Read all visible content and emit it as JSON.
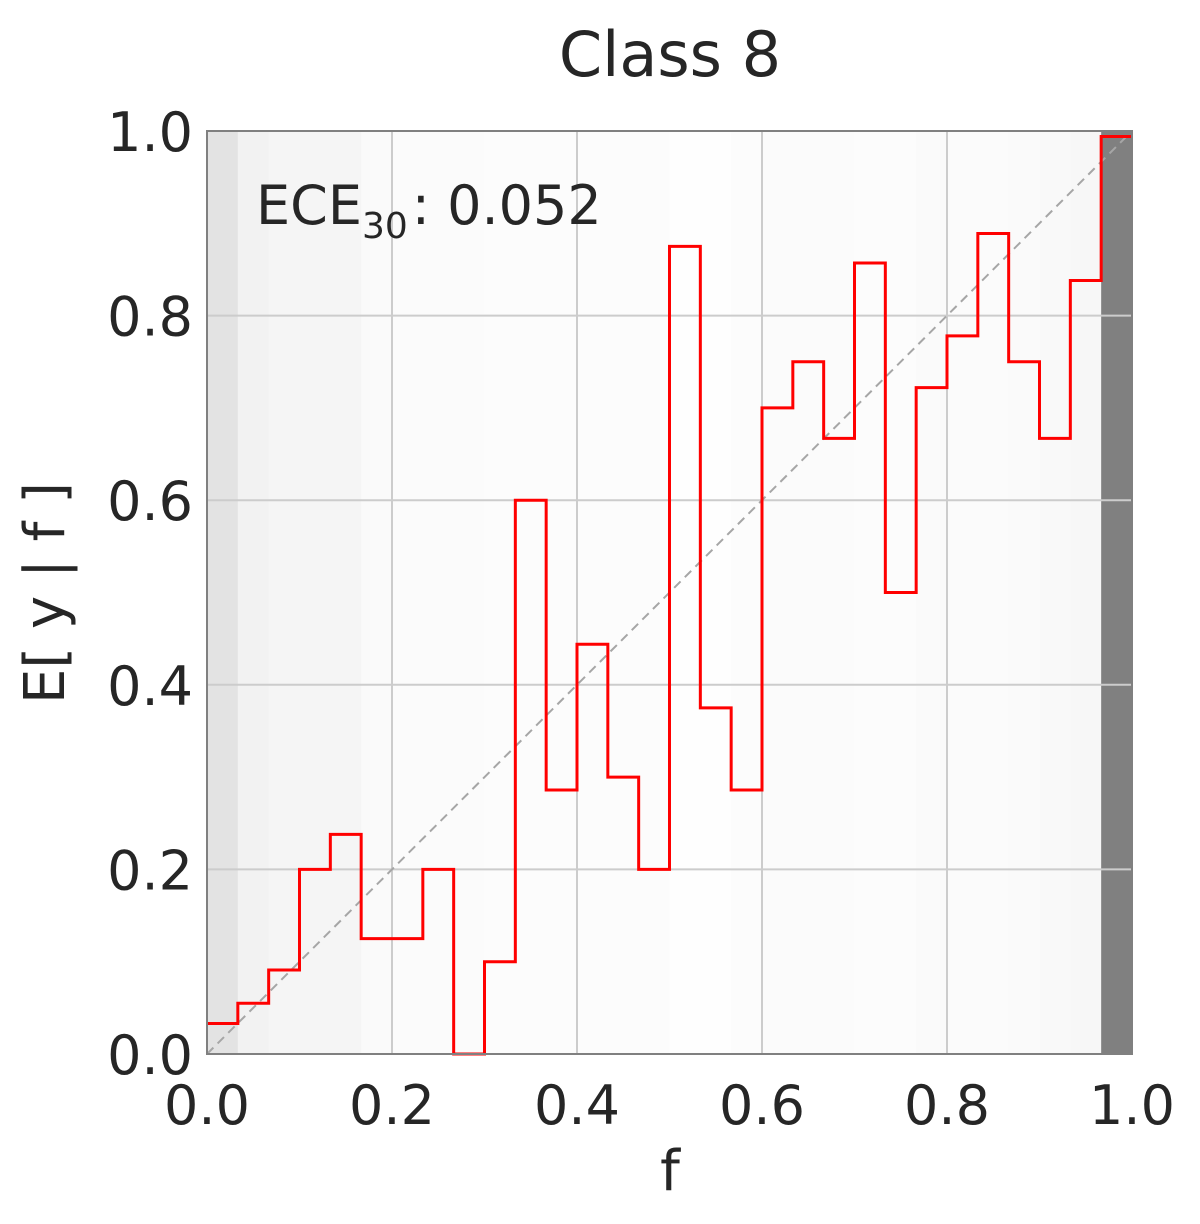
{
  "chart_data": {
    "type": "line",
    "title": "Class 8",
    "xlabel": "f",
    "ylabel": "E[ y | f ]",
    "xlim": [
      0.0,
      1.0
    ],
    "ylim": [
      0.0,
      1.0
    ],
    "xticks": [
      "0.0",
      "0.2",
      "0.4",
      "0.6",
      "0.8",
      "1.0"
    ],
    "yticks": [
      "0.0",
      "0.2",
      "0.4",
      "0.6",
      "0.8",
      "1.0"
    ],
    "grid": true,
    "annotation": {
      "prefix": "ECE",
      "subscript": "30",
      "value": ": 0.052"
    },
    "bins": 30,
    "bin_edges_start": 0.0,
    "bin_width": 0.0333,
    "bin_values": [
      0.033,
      0.055,
      0.091,
      0.2,
      0.238,
      0.125,
      0.125,
      0.2,
      0.0,
      0.1,
      0.6,
      0.286,
      0.444,
      0.3,
      0.2,
      0.875,
      0.375,
      0.286,
      0.7,
      0.75,
      0.667,
      0.857,
      0.5,
      0.722,
      0.778,
      0.889,
      0.75,
      0.667,
      0.838,
      0.994
    ],
    "bin_density": [
      0.22,
      0.1,
      0.08,
      0.08,
      0.08,
      0.04,
      0.03,
      0.03,
      0.03,
      0.02,
      0.02,
      0.02,
      0.02,
      0.02,
      0.02,
      0.01,
      0.01,
      0.02,
      0.03,
      0.03,
      0.03,
      0.02,
      0.02,
      0.04,
      0.03,
      0.03,
      0.04,
      0.05,
      0.06,
      1.0
    ],
    "diagonal": {
      "from": [
        0,
        0
      ],
      "to": [
        1,
        1
      ]
    },
    "colors": {
      "line": "#ff0000",
      "diagonal": "#a6a6a6",
      "grid": "#cccccc",
      "frame": "#808080"
    }
  }
}
